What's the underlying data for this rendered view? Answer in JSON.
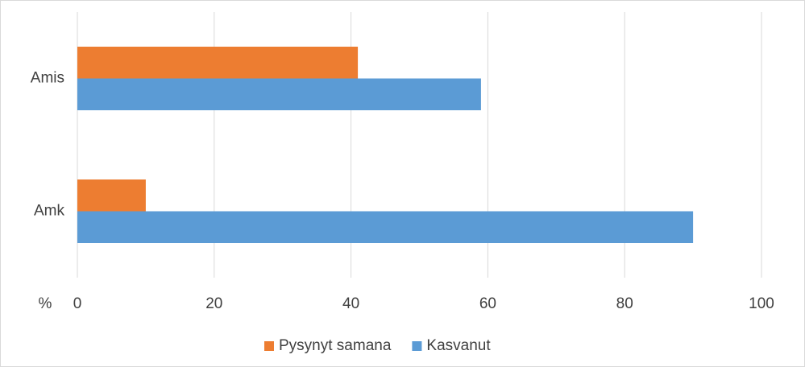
{
  "chart_data": {
    "type": "hbar",
    "x_label": "%",
    "categories": [
      "Amis",
      "Amk"
    ],
    "series": [
      {
        "name": "Pysynyt samana",
        "color": "#ed7d31",
        "values": [
          41,
          10
        ]
      },
      {
        "name": "Kasvanut",
        "color": "#5b9bd5",
        "values": [
          59,
          90
        ]
      }
    ],
    "xlim": [
      0,
      100
    ],
    "xticks": [
      0,
      20,
      40,
      60,
      80,
      100
    ],
    "grid": true,
    "legend": "bottom"
  }
}
